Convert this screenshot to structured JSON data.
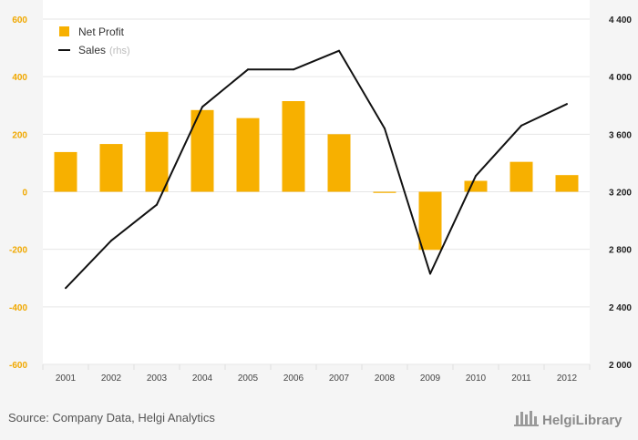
{
  "chart_data": {
    "type": "bar",
    "categories": [
      "2001",
      "2002",
      "2003",
      "2004",
      "2005",
      "2006",
      "2007",
      "2008",
      "2009",
      "2010",
      "2011",
      "2012"
    ],
    "series": [
      {
        "name": "Net Profit",
        "type": "bar",
        "axis": "left",
        "values": [
          138,
          166,
          208,
          284,
          256,
          315,
          200,
          -4,
          -202,
          38,
          104,
          58
        ]
      },
      {
        "name": "Sales",
        "type": "line",
        "axis": "right",
        "values": [
          2530,
          2860,
          3110,
          3790,
          4050,
          4050,
          4180,
          3640,
          2630,
          3310,
          3660,
          3810
        ]
      }
    ],
    "legend": [
      {
        "label": "Net Profit",
        "suffix": ""
      },
      {
        "label": "Sales",
        "suffix": "(rhs)"
      }
    ],
    "ylim": [
      -600,
      600
    ],
    "y_ticks": [
      600,
      400,
      200,
      0,
      -200,
      -400,
      -600
    ],
    "y_tick_labels": [
      "600",
      "400",
      "200",
      "0",
      "-200",
      "-400",
      "-600"
    ],
    "y2lim": [
      2000,
      4400
    ],
    "y2_ticks": [
      4400,
      4000,
      3600,
      3200,
      2800,
      2400,
      2000
    ],
    "y2_tick_labels": [
      "4 400",
      "4 000",
      "3 600",
      "3 200",
      "2 800",
      "2 400",
      "2 000"
    ],
    "grid": true,
    "legend_position": "top-left",
    "colors": {
      "bar": "#f7b000",
      "line": "#111111",
      "left_axis": "#f0a800",
      "right_axis": "#222222"
    }
  },
  "footer": {
    "source": "Source: Company Data, Helgi Analytics",
    "brand": "HelgiLibrary"
  }
}
